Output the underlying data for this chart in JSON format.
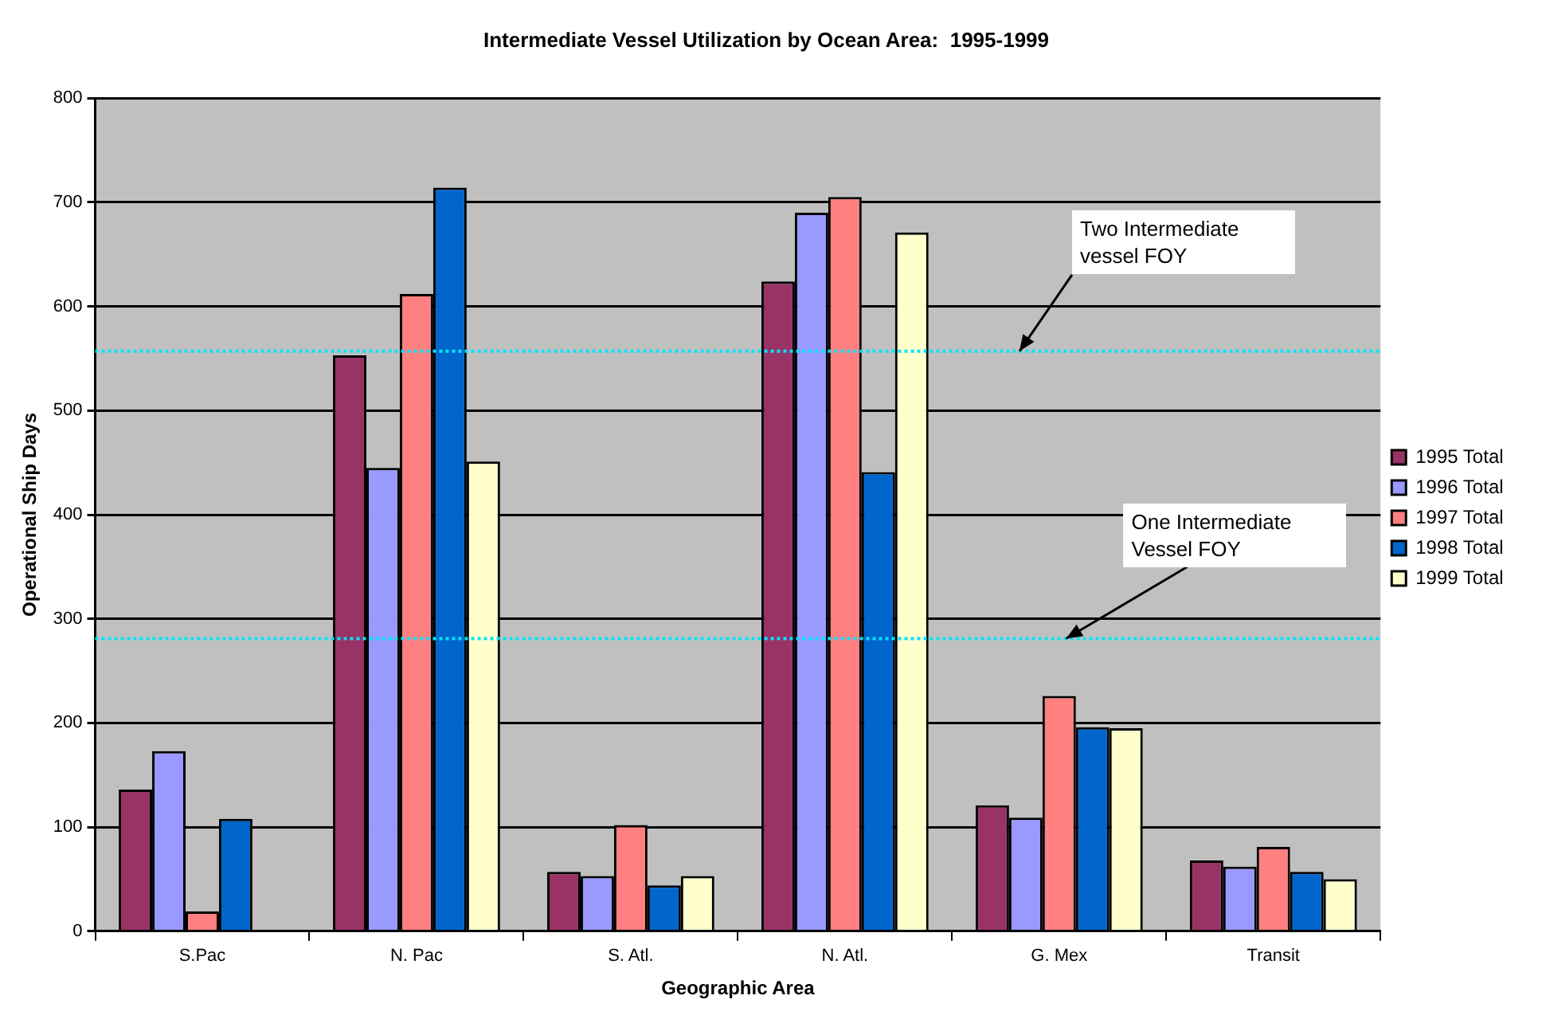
{
  "chart_data": {
    "type": "bar",
    "title": "Intermediate Vessel Utilization by Ocean Area:  1995-1999",
    "xlabel": "Geographic Area",
    "ylabel": "Operational Ship Days",
    "categories": [
      "S.Pac",
      "N. Pac",
      "S. Atl.",
      "N. Atl.",
      "G. Mex",
      "Transit"
    ],
    "series": [
      {
        "name": "1995 Total",
        "color": "#993366",
        "values": [
          136,
          553,
          57,
          624,
          121,
          68
        ]
      },
      {
        "name": "1996 Total",
        "color": "#9999ff",
        "values": [
          173,
          445,
          53,
          690,
          109,
          62
        ]
      },
      {
        "name": "1997 Total",
        "color": "#ff8080",
        "values": [
          19,
          612,
          102,
          705,
          226,
          81
        ]
      },
      {
        "name": "1998 Total",
        "color": "#0066cc",
        "values": [
          108,
          714,
          44,
          441,
          196,
          57
        ]
      },
      {
        "name": "1999 Total",
        "color": "#ffffcc",
        "values": [
          0,
          451,
          53,
          671,
          195,
          50
        ]
      }
    ],
    "ylim": [
      0,
      800
    ],
    "yticks": [
      0,
      100,
      200,
      300,
      400,
      500,
      600,
      700,
      800
    ],
    "grid": "y",
    "legend": "right",
    "ref_lines": [
      {
        "axis": "y",
        "value": 557,
        "label": "Two Intermediate vessel FOY",
        "color": "#00e5ff",
        "line_style": "dotted"
      },
      {
        "axis": "y",
        "value": 281,
        "label": "One Intermediate Vessel FOY",
        "color": "#00e5ff",
        "line_style": "dotted"
      }
    ]
  }
}
